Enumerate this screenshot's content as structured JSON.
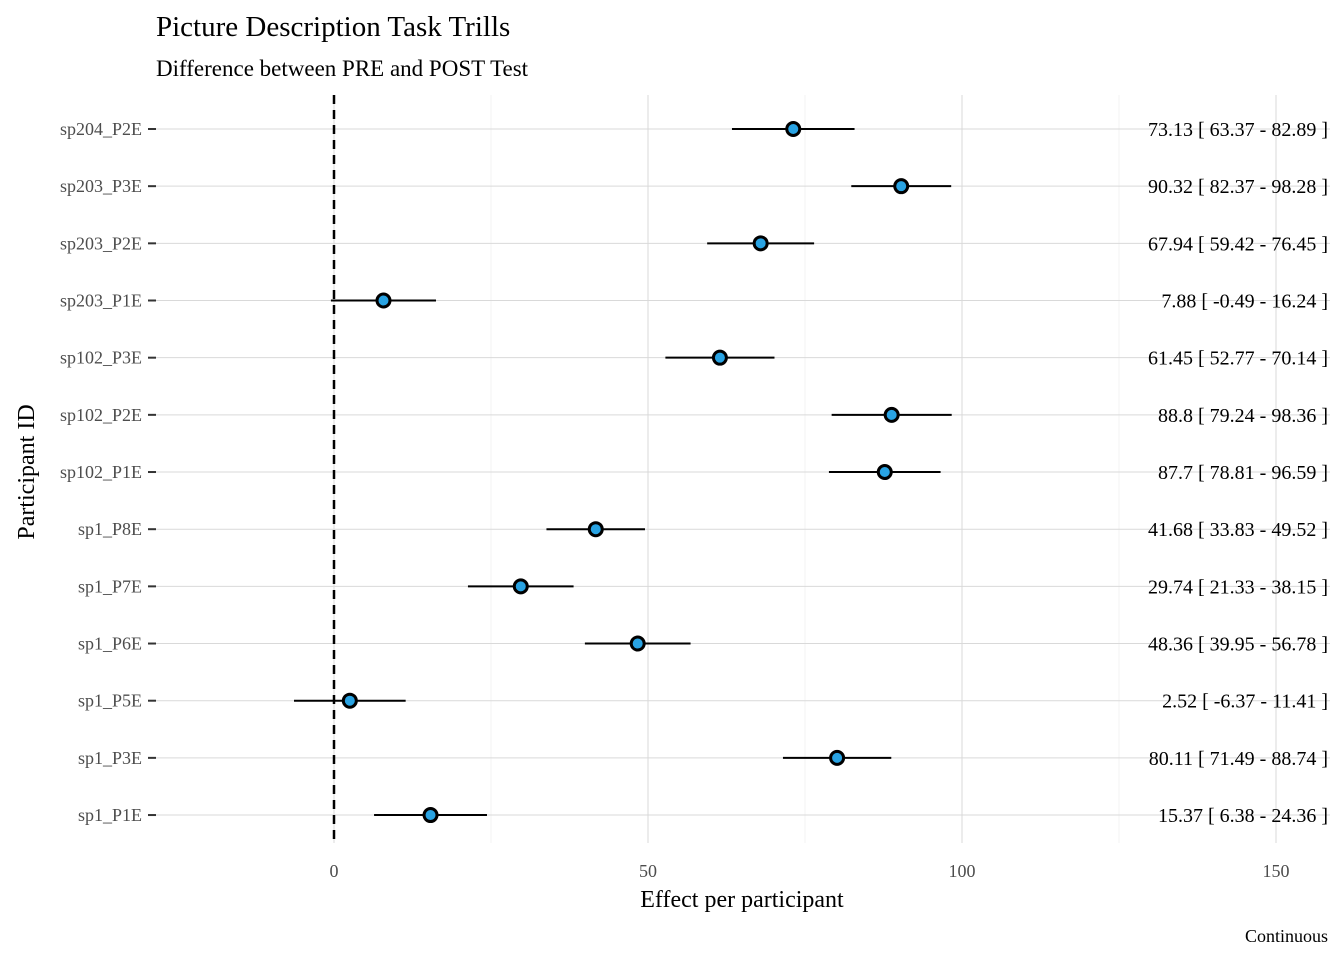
{
  "chart_data": {
    "type": "forest",
    "title": "Picture Description Task Trills",
    "subtitle": "Difference between PRE and POST Test",
    "xlabel": "Effect per participant",
    "ylabel": "Participant ID",
    "caption": "Continuous",
    "xlim": [
      -28.5,
      150
    ],
    "xticks": [
      0,
      50,
      100,
      150
    ],
    "reference_line": 0,
    "grid": true,
    "point_color": "#29a3e3",
    "participants": [
      {
        "id": "sp204_P2E",
        "estimate": 73.13,
        "lower": 63.37,
        "upper": 82.89,
        "label": "73.13 [ 63.37 - 82.89 ]"
      },
      {
        "id": "sp203_P3E",
        "estimate": 90.32,
        "lower": 82.37,
        "upper": 98.28,
        "label": "90.32 [ 82.37 - 98.28 ]"
      },
      {
        "id": "sp203_P2E",
        "estimate": 67.94,
        "lower": 59.42,
        "upper": 76.45,
        "label": "67.94 [ 59.42 - 76.45 ]"
      },
      {
        "id": "sp203_P1E",
        "estimate": 7.88,
        "lower": -0.49,
        "upper": 16.24,
        "label": "7.88 [ -0.49 - 16.24 ]"
      },
      {
        "id": "sp102_P3E",
        "estimate": 61.45,
        "lower": 52.77,
        "upper": 70.14,
        "label": "61.45 [ 52.77 - 70.14 ]"
      },
      {
        "id": "sp102_P2E",
        "estimate": 88.8,
        "lower": 79.24,
        "upper": 98.36,
        "label": "88.8 [ 79.24 - 98.36 ]"
      },
      {
        "id": "sp102_P1E",
        "estimate": 87.7,
        "lower": 78.81,
        "upper": 96.59,
        "label": "87.7 [ 78.81 - 96.59 ]"
      },
      {
        "id": "sp1_P8E",
        "estimate": 41.68,
        "lower": 33.83,
        "upper": 49.52,
        "label": "41.68 [ 33.83 - 49.52 ]"
      },
      {
        "id": "sp1_P7E",
        "estimate": 29.74,
        "lower": 21.33,
        "upper": 38.15,
        "label": "29.74 [ 21.33 - 38.15 ]"
      },
      {
        "id": "sp1_P6E",
        "estimate": 48.36,
        "lower": 39.95,
        "upper": 56.78,
        "label": "48.36 [ 39.95 - 56.78 ]"
      },
      {
        "id": "sp1_P5E",
        "estimate": 2.52,
        "lower": -6.37,
        "upper": 11.41,
        "label": "2.52 [ -6.37 - 11.41 ]"
      },
      {
        "id": "sp1_P3E",
        "estimate": 80.11,
        "lower": 71.49,
        "upper": 88.74,
        "label": "80.11 [ 71.49 - 88.74 ]"
      },
      {
        "id": "sp1_P1E",
        "estimate": 15.37,
        "lower": 6.38,
        "upper": 24.36,
        "label": "15.37 [ 6.38 - 24.36 ]"
      }
    ]
  }
}
